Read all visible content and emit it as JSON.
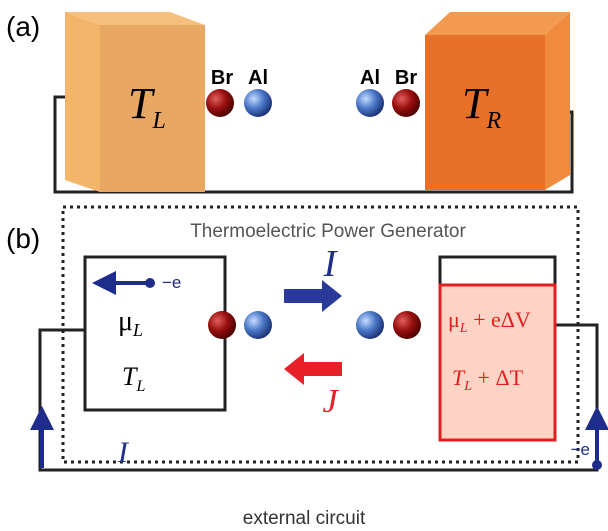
{
  "panel_a": {
    "label": "(a)",
    "left_block": {
      "main": "T",
      "sub": "L"
    },
    "right_block": {
      "main": "T",
      "sub": "R"
    },
    "left_atoms": [
      "Br",
      "Al"
    ],
    "right_atoms": [
      "Al",
      "Br"
    ]
  },
  "panel_b": {
    "label": "(b)",
    "title": "Thermoelectric Power Generator",
    "left_box": {
      "electron": "−e",
      "potential": {
        "main": "μ",
        "sub": "L"
      },
      "temperature": {
        "main": "T",
        "sub": "L"
      }
    },
    "current_label": "I",
    "heat_label": "J",
    "right_box": {
      "potential": {
        "main": "μ",
        "sub": "L",
        "rest": " + eΔV"
      },
      "temperature": {
        "main": "T",
        "sub": "L",
        "rest": " + ΔT"
      }
    },
    "circuit_current": "I",
    "circuit_electron": "−e",
    "circuit_label": "external circuit"
  }
}
